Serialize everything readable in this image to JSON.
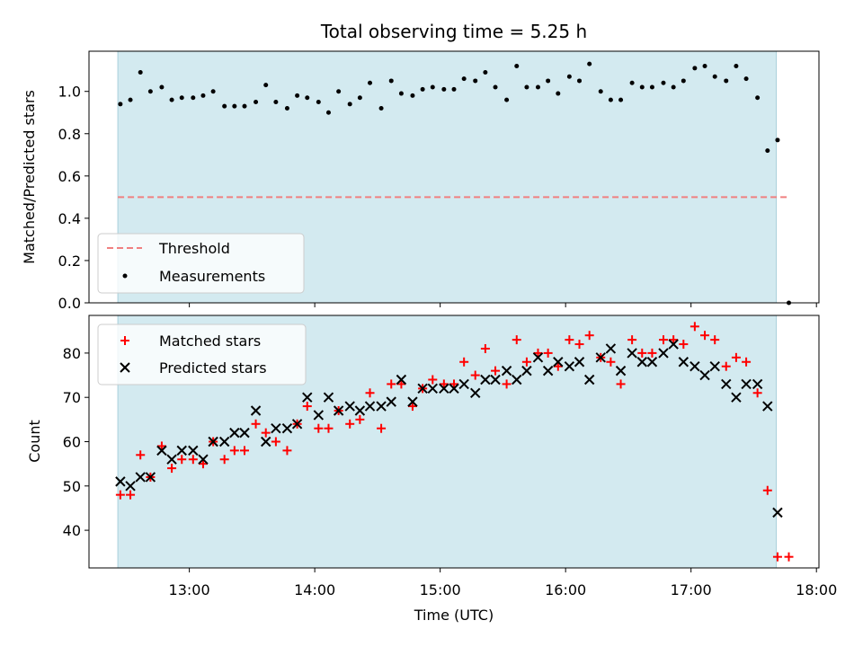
{
  "title": "Total observing time = 5.25 h",
  "colors": {
    "shade": "#d3eaf0",
    "threshold": "#f08080",
    "measurement": "#000000",
    "matched": "#ff0000",
    "predicted": "#000000"
  },
  "chart_data": [
    {
      "type": "scatter",
      "panel": "top",
      "ylabel": "Matched/Predicted stars",
      "xlim": [
        12.2,
        18.02
      ],
      "ylim": [
        0.0,
        1.19
      ],
      "yticks": [
        0.0,
        0.2,
        0.4,
        0.6,
        0.8,
        1.0
      ],
      "ytick_labels": [
        "0.0",
        "0.2",
        "0.4",
        "0.6",
        "0.8",
        "1.0"
      ],
      "shade_range": [
        12.43,
        17.68
      ],
      "legend_position": "lower-left",
      "threshold": {
        "name": "Threshold",
        "value": 0.5,
        "x_range": [
          12.43,
          17.77
        ]
      },
      "series": [
        {
          "name": "Measurements",
          "x": [
            12.45,
            12.53,
            12.61,
            12.69,
            12.78,
            12.86,
            12.94,
            13.03,
            13.11,
            13.19,
            13.28,
            13.36,
            13.44,
            13.53,
            13.61,
            13.69,
            13.78,
            13.86,
            13.94,
            14.03,
            14.11,
            14.19,
            14.28,
            14.36,
            14.44,
            14.53,
            14.61,
            14.69,
            14.78,
            14.86,
            14.94,
            15.03,
            15.11,
            15.19,
            15.28,
            15.36,
            15.44,
            15.53,
            15.61,
            15.69,
            15.78,
            15.86,
            15.94,
            16.03,
            16.11,
            16.19,
            16.28,
            16.36,
            16.44,
            16.53,
            16.61,
            16.69,
            16.78,
            16.86,
            16.94,
            17.03,
            17.11,
            17.19,
            17.28,
            17.36,
            17.44,
            17.53,
            17.61,
            17.69,
            17.78
          ],
          "y": [
            0.94,
            0.96,
            1.09,
            1.0,
            1.02,
            0.96,
            0.97,
            0.97,
            0.98,
            1.0,
            0.93,
            0.93,
            0.93,
            0.95,
            1.03,
            0.95,
            0.92,
            0.98,
            0.97,
            0.95,
            0.9,
            1.0,
            0.94,
            0.97,
            1.04,
            0.92,
            1.05,
            0.99,
            0.98,
            1.01,
            1.02,
            1.01,
            1.01,
            1.06,
            1.05,
            1.09,
            1.02,
            0.96,
            1.12,
            1.02,
            1.02,
            1.05,
            0.99,
            1.07,
            1.05,
            1.13,
            1.0,
            0.96,
            0.96,
            1.04,
            1.02,
            1.02,
            1.04,
            1.02,
            1.05,
            1.11,
            1.12,
            1.07,
            1.05,
            1.12,
            1.06,
            0.97,
            0.72,
            0.77,
            0.0
          ]
        }
      ]
    },
    {
      "type": "scatter",
      "panel": "bottom",
      "xlabel": "Time (UTC)",
      "ylabel": "Count",
      "xlim": [
        12.2,
        18.02
      ],
      "ylim": [
        31.5,
        88.5
      ],
      "xticks": [
        13,
        14,
        15,
        16,
        17,
        18
      ],
      "xtick_labels": [
        "13:00",
        "14:00",
        "15:00",
        "16:00",
        "17:00",
        "18:00"
      ],
      "yticks": [
        40,
        50,
        60,
        70,
        80
      ],
      "ytick_labels": [
        "40",
        "50",
        "60",
        "70",
        "80"
      ],
      "shade_range": [
        12.43,
        17.68
      ],
      "legend_position": "upper-left",
      "series": [
        {
          "name": "Matched stars",
          "marker": "plus",
          "x": [
            12.45,
            12.53,
            12.61,
            12.69,
            12.78,
            12.86,
            12.94,
            13.03,
            13.11,
            13.19,
            13.28,
            13.36,
            13.44,
            13.53,
            13.61,
            13.69,
            13.78,
            13.86,
            13.94,
            14.03,
            14.11,
            14.19,
            14.28,
            14.36,
            14.44,
            14.53,
            14.61,
            14.69,
            14.78,
            14.86,
            14.94,
            15.03,
            15.11,
            15.19,
            15.28,
            15.36,
            15.44,
            15.53,
            15.61,
            15.69,
            15.78,
            15.86,
            15.94,
            16.03,
            16.11,
            16.19,
            16.28,
            16.36,
            16.44,
            16.53,
            16.61,
            16.69,
            16.78,
            16.86,
            16.94,
            17.03,
            17.11,
            17.19,
            17.28,
            17.36,
            17.44,
            17.53,
            17.61,
            17.69,
            17.78
          ],
          "y": [
            48,
            48,
            57,
            52,
            59,
            54,
            56,
            56,
            55,
            60,
            56,
            58,
            58,
            64,
            62,
            60,
            58,
            64,
            68,
            63,
            63,
            67,
            64,
            65,
            71,
            63,
            73,
            73,
            68,
            72,
            74,
            73,
            73,
            78,
            75,
            81,
            76,
            73,
            83,
            78,
            80,
            80,
            77,
            83,
            82,
            84,
            79,
            78,
            73,
            83,
            80,
            80,
            83,
            83,
            82,
            86,
            84,
            83,
            77,
            79,
            78,
            71,
            49,
            34,
            34
          ]
        },
        {
          "name": "Predicted stars",
          "marker": "x",
          "x": [
            12.45,
            12.53,
            12.61,
            12.69,
            12.78,
            12.86,
            12.94,
            13.03,
            13.11,
            13.19,
            13.28,
            13.36,
            13.44,
            13.53,
            13.61,
            13.69,
            13.78,
            13.86,
            13.94,
            14.03,
            14.11,
            14.19,
            14.28,
            14.36,
            14.44,
            14.53,
            14.61,
            14.69,
            14.78,
            14.86,
            14.94,
            15.03,
            15.11,
            15.19,
            15.28,
            15.36,
            15.44,
            15.53,
            15.61,
            15.69,
            15.78,
            15.86,
            15.94,
            16.03,
            16.11,
            16.19,
            16.28,
            16.36,
            16.44,
            16.53,
            16.61,
            16.69,
            16.78,
            16.86,
            16.94,
            17.03,
            17.11,
            17.19,
            17.28,
            17.36,
            17.44,
            17.53,
            17.61,
            17.69
          ],
          "y": [
            51,
            50,
            52,
            52,
            58,
            56,
            58,
            58,
            56,
            60,
            60,
            62,
            62,
            67,
            60,
            63,
            63,
            64,
            70,
            66,
            70,
            67,
            68,
            67,
            68,
            68,
            69,
            74,
            69,
            72,
            72,
            72,
            72,
            73,
            71,
            74,
            74,
            76,
            74,
            76,
            79,
            76,
            78,
            77,
            78,
            74,
            79,
            81,
            76,
            80,
            78,
            78,
            80,
            82,
            78,
            77,
            75,
            77,
            73,
            70,
            73,
            73,
            68,
            44
          ]
        }
      ]
    }
  ]
}
